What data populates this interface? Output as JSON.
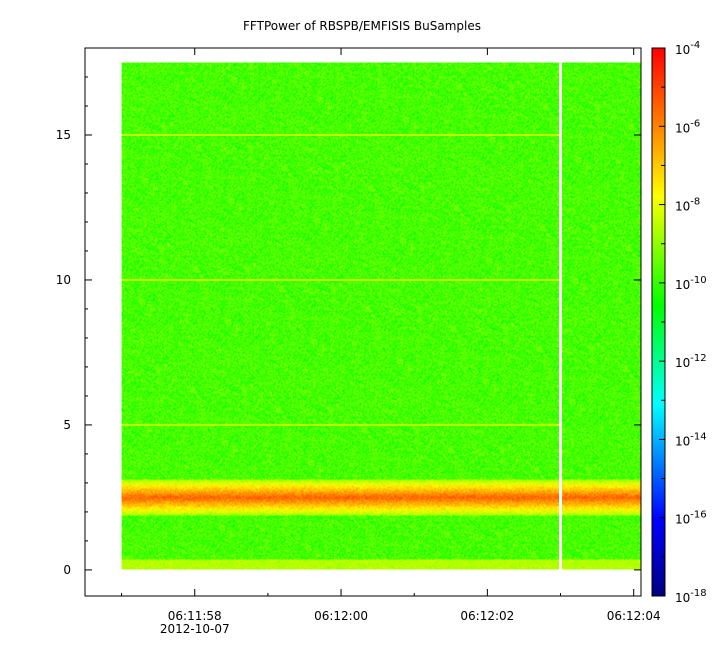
{
  "chart_data": {
    "type": "heatmap",
    "title": "FFTPower of RBSPB/EMFISIS  BuSamples",
    "xlabel": "",
    "ylabel": "",
    "x_range": [
      "06:11:56.5",
      "06:12:04.1"
    ],
    "y_range": [
      -0.9,
      18.0
    ],
    "x_ticks": [
      {
        "t": "06:11:58",
        "label": "06:11:58",
        "sublabel": "2012-10-07"
      },
      {
        "t": "06:12:00",
        "label": "06:12:00",
        "sublabel": ""
      },
      {
        "t": "06:12:02",
        "label": "06:12:02",
        "sublabel": ""
      },
      {
        "t": "06:12:04",
        "label": "06:12:04",
        "sublabel": ""
      }
    ],
    "y_ticks": [
      0,
      5,
      10,
      15
    ],
    "data_extent": {
      "x": [
        "06:11:57.0",
        "06:12:04.1"
      ],
      "y": [
        0,
        17.5
      ]
    },
    "data_gap": "06:12:03.0",
    "features": [
      {
        "name": "",
        "y_center": 2.5,
        "y_width": 0.9,
        "level_log10": -5.5
      },
      {
        "name": "",
        "y": 15,
        "level_log10": -8.5
      },
      {
        "name": "",
        "y": 10,
        "level_log10": -8.5
      },
      {
        "name": "",
        "y": 5,
        "level_log10": -8.5
      },
      {
        "name": "",
        "y": 0.3,
        "level_log10": -8.5
      }
    ],
    "background_level_log10": -9.8,
    "colorbar": {
      "scale": "log",
      "min_exp": -18,
      "max_exp": -4,
      "tick_exps": [
        -4,
        -6,
        -8,
        -10,
        -12,
        -14,
        -16,
        -18
      ],
      "colors": [
        "#000080",
        "#0000ff",
        "#00ffff",
        "#00ff00",
        "#ffff00",
        "#ff8000",
        "#ff0000"
      ]
    }
  }
}
